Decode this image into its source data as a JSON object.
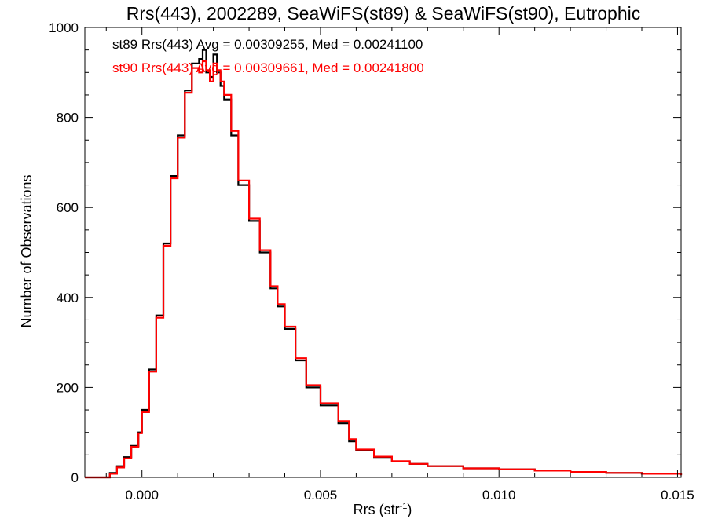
{
  "chart_data": {
    "type": "line",
    "title": "Rrs(443), 2002289, SeaWiFS(st89) & SeaWiFS(st90), Eutrophic",
    "xlabel": "Rrs (str",
    "xlabel_sup": "-1",
    "xlabel_end": ")",
    "ylabel": "Number of Observations",
    "xlim": [
      -0.0016,
      0.0151
    ],
    "ylim": [
      0,
      1000
    ],
    "xticks": [
      0.0,
      0.005,
      0.01,
      0.015
    ],
    "xtick_labels": [
      "0.000",
      "0.005",
      "0.010",
      "0.015"
    ],
    "yticks": [
      0,
      200,
      400,
      600,
      800,
      1000
    ],
    "ytick_labels": [
      "0",
      "200",
      "400",
      "600",
      "800",
      "1000"
    ],
    "grid": false,
    "legend": "top-left",
    "annotations": [
      {
        "text": "st89 Rrs(443) Avg = 0.00309255, Med = 0.00241100",
        "color": "#000000"
      },
      {
        "text": "st90 Rrs(443) Avg = 0.00309661, Med = 0.00241800",
        "color": "#ff0000"
      }
    ],
    "series": [
      {
        "color": "#000000",
        "x": [
          -0.0016,
          -0.001,
          -0.0009,
          -0.0007,
          -0.0005,
          -0.0003,
          -0.0001,
          0.0,
          0.0002,
          0.0004,
          0.0006,
          0.0008,
          0.001,
          0.0012,
          0.0014,
          0.0016,
          0.0017,
          0.0018,
          0.0019,
          0.002,
          0.0021,
          0.0022,
          0.0023,
          0.0025,
          0.0027,
          0.003,
          0.0033,
          0.0036,
          0.0038,
          0.004,
          0.0043,
          0.0046,
          0.005,
          0.0055,
          0.0058,
          0.006,
          0.0065,
          0.007,
          0.0075,
          0.008,
          0.009,
          0.01,
          0.011,
          0.012,
          0.013,
          0.014,
          0.0151
        ],
        "y": [
          0,
          0,
          10,
          25,
          45,
          70,
          100,
          150,
          240,
          360,
          520,
          670,
          760,
          860,
          920,
          930,
          950,
          900,
          890,
          940,
          900,
          870,
          840,
          760,
          650,
          570,
          500,
          420,
          380,
          330,
          260,
          200,
          160,
          120,
          80,
          60,
          45,
          35,
          30,
          25,
          20,
          18,
          15,
          12,
          10,
          8,
          5
        ]
      },
      {
        "color": "#ff0000",
        "x": [
          -0.0016,
          -0.001,
          -0.0009,
          -0.0007,
          -0.0005,
          -0.0003,
          -0.0001,
          0.0,
          0.0002,
          0.0004,
          0.0006,
          0.0008,
          0.001,
          0.0012,
          0.0014,
          0.0016,
          0.0017,
          0.0018,
          0.0019,
          0.002,
          0.0021,
          0.0022,
          0.0023,
          0.0025,
          0.0027,
          0.003,
          0.0033,
          0.0036,
          0.0038,
          0.004,
          0.0043,
          0.0046,
          0.005,
          0.0055,
          0.0058,
          0.006,
          0.0065,
          0.007,
          0.0075,
          0.008,
          0.009,
          0.01,
          0.011,
          0.012,
          0.013,
          0.014,
          0.0151
        ],
        "y": [
          0,
          0,
          8,
          22,
          42,
          68,
          98,
          145,
          235,
          355,
          515,
          665,
          755,
          855,
          910,
          900,
          925,
          905,
          880,
          920,
          905,
          880,
          850,
          770,
          660,
          575,
          505,
          425,
          385,
          335,
          265,
          205,
          165,
          125,
          85,
          62,
          46,
          36,
          30,
          25,
          20,
          18,
          15,
          12,
          10,
          8,
          5
        ]
      }
    ]
  }
}
